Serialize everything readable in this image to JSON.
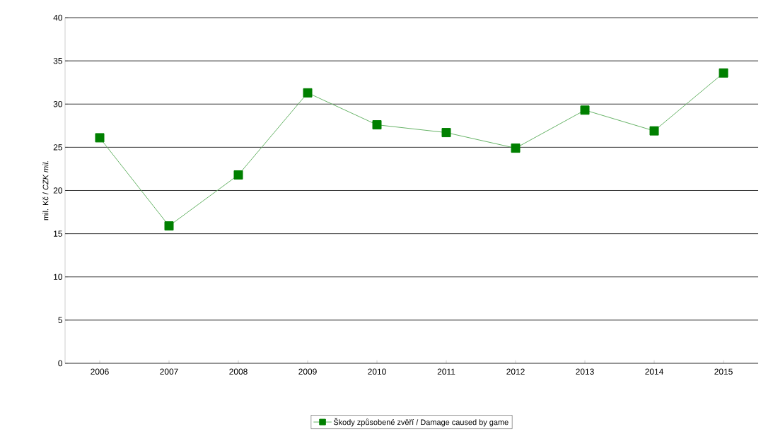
{
  "chart_data": {
    "type": "line",
    "ylabel": "mil. Kč / *CZK mil.*",
    "categories": [
      "2006",
      "2007",
      "2008",
      "2009",
      "2010",
      "2011",
      "2012",
      "2013",
      "2014",
      "2015"
    ],
    "series": [
      {
        "name": "Škody způsobené zvěří / Damage caused by game",
        "color": "#008000",
        "values": [
          26.1,
          15.9,
          21.8,
          31.3,
          27.6,
          26.7,
          24.9,
          29.3,
          26.9,
          33.6
        ]
      }
    ],
    "ylim": [
      0,
      40
    ],
    "yticks": [
      0,
      5,
      10,
      15,
      20,
      25,
      30,
      35,
      40
    ],
    "grid": "y",
    "legend": "bottom",
    "marker": "square",
    "line_style": "solid"
  }
}
